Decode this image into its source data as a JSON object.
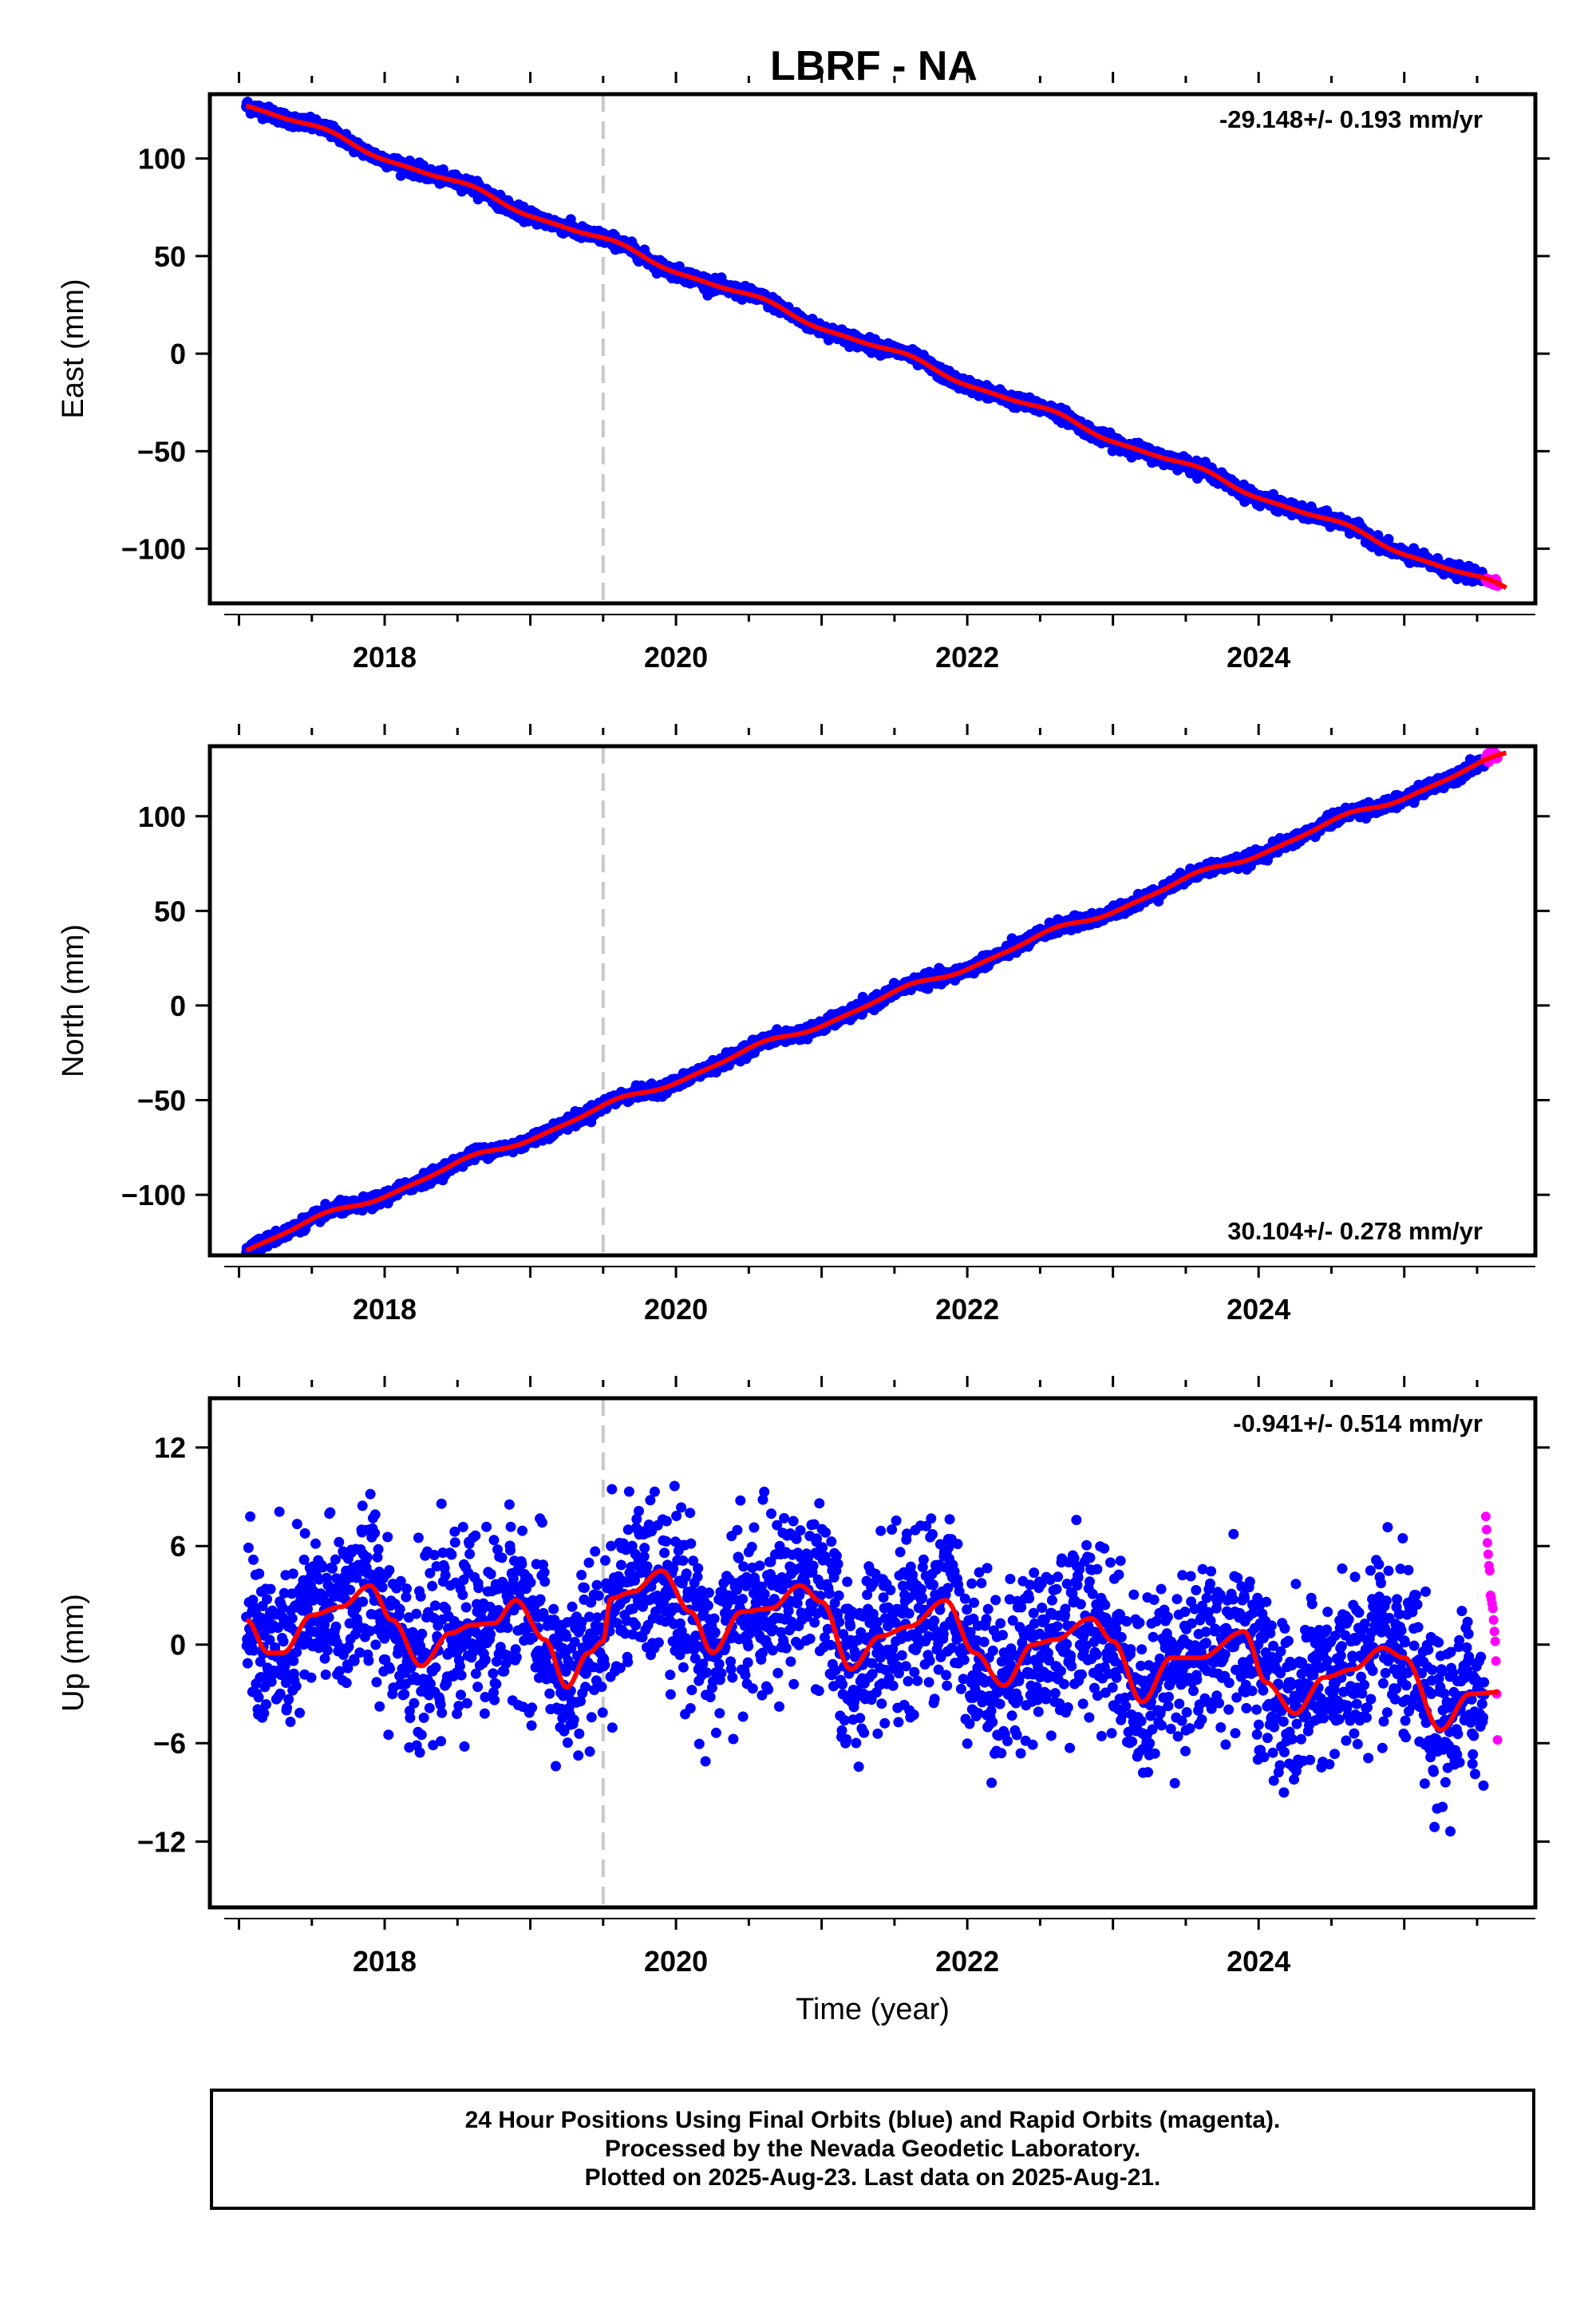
{
  "title": "LBRF - NA",
  "colors": {
    "final_points": "#0000ff",
    "rapid_points": "#ff00ff",
    "model_line": "#ff0000",
    "event_line": "#c8c8c8",
    "frame": "#000000"
  },
  "chart_data": [
    {
      "type": "scatter",
      "name": "east",
      "ylabel": "East (mm)",
      "xlabel": "",
      "xlim": [
        2016.8,
        2025.9
      ],
      "ylim": [
        -128,
        133
      ],
      "x_ticks": [
        2018,
        2020,
        2022,
        2024
      ],
      "x_tick_labels": [
        "2018",
        "2020",
        "2022",
        "2024"
      ],
      "y_ticks": [
        -100,
        -50,
        0,
        50,
        100
      ],
      "y_tick_labels": [
        "−100",
        "−50",
        "0",
        "50",
        "100"
      ],
      "rate_label": "-29.148+/- 0.193 mm/yr",
      "rate_label_position": "top-right",
      "event_line_x": 2019.5,
      "trend": {
        "x0": 2017.05,
        "y0": 128.5,
        "x1": 2025.7,
        "y1": -121.5
      },
      "series": [
        {
          "name": "Final Orbits",
          "color": "blue",
          "x_range": [
            2017.05,
            2025.55
          ],
          "noise_mm": 1.6
        },
        {
          "name": "Rapid Orbits",
          "color": "magenta",
          "x_range": [
            2025.56,
            2025.64
          ],
          "noise_mm": 1.2
        }
      ]
    },
    {
      "type": "scatter",
      "name": "north",
      "ylabel": "North (mm)",
      "xlabel": "",
      "xlim": [
        2016.8,
        2025.9
      ],
      "ylim": [
        -132,
        137
      ],
      "x_ticks": [
        2018,
        2020,
        2022,
        2024
      ],
      "x_tick_labels": [
        "2018",
        "2020",
        "2022",
        "2024"
      ],
      "y_ticks": [
        -100,
        -50,
        0,
        50,
        100
      ],
      "y_tick_labels": [
        "−100",
        "−50",
        "0",
        "50",
        "100"
      ],
      "rate_label": "30.104+/- 0.278 mm/yr",
      "rate_label_position": "bottom-right",
      "event_line_x": 2019.5,
      "trend": {
        "x0": 2017.05,
        "y0": -128,
        "x1": 2025.7,
        "y1": 132
      },
      "series": [
        {
          "name": "Final Orbits",
          "color": "blue",
          "x_range": [
            2017.05,
            2025.55
          ],
          "noise_mm": 1.6
        },
        {
          "name": "Rapid Orbits",
          "color": "magenta",
          "x_range": [
            2025.56,
            2025.64
          ],
          "noise_mm": 1.2
        }
      ]
    },
    {
      "type": "scatter",
      "name": "up",
      "ylabel": "Up (mm)",
      "xlabel": "Time (year)",
      "xlim": [
        2016.8,
        2025.9
      ],
      "ylim": [
        -16,
        15
      ],
      "x_ticks": [
        2018,
        2020,
        2022,
        2024
      ],
      "x_tick_labels": [
        "2018",
        "2020",
        "2022",
        "2024"
      ],
      "y_ticks": [
        -12,
        -6,
        0,
        6,
        12
      ],
      "y_tick_labels": [
        "−12",
        "−6",
        "0",
        "6",
        "12"
      ],
      "rate_label": "-0.941+/- 0.514 mm/yr",
      "rate_label_position": "top-right",
      "event_line_x": 2019.5,
      "model_curve": {
        "x": [
          2017.05,
          2017.2,
          2017.3,
          2017.5,
          2017.7,
          2017.9,
          2018.05,
          2018.25,
          2018.45,
          2018.6,
          2018.75,
          2018.9,
          2019.1,
          2019.25,
          2019.4,
          2019.5,
          2019.55,
          2019.7,
          2019.9,
          2020.1,
          2020.25,
          2020.45,
          2020.65,
          2020.85,
          2021.0,
          2021.2,
          2021.4,
          2021.6,
          2021.85,
          2022.05,
          2022.25,
          2022.45,
          2022.6,
          2022.85,
          2023.0,
          2023.2,
          2023.4,
          2023.6,
          2023.9,
          2024.05,
          2024.25,
          2024.45,
          2024.65,
          2024.85,
          2025.0,
          2025.25,
          2025.45,
          2025.65
        ],
        "y": [
          1.5,
          -0.5,
          -0.5,
          1.8,
          2.3,
          3.6,
          1.5,
          -1.3,
          0.7,
          1.2,
          1.3,
          2.7,
          0.3,
          -2.6,
          -0.5,
          0.2,
          2.8,
          3.2,
          4.5,
          2.0,
          -0.5,
          2.0,
          2.2,
          3.6,
          2.6,
          -1.5,
          0.5,
          1.1,
          2.7,
          -0.5,
          -2.5,
          0.0,
          0.3,
          1.6,
          0.2,
          -3.5,
          -0.8,
          -0.8,
          0.8,
          -2.3,
          -4.2,
          -2.0,
          -1.5,
          -0.2,
          -0.8,
          -5.2,
          -3.0,
          -2.9
        ]
      },
      "series": [
        {
          "name": "Final Orbits",
          "color": "blue",
          "x_range": [
            2017.05,
            2025.55
          ],
          "noise_mm": 2.6
        },
        {
          "name": "Rapid Orbits",
          "color": "magenta",
          "x_range": [
            2025.56,
            2025.64
          ],
          "y_values": [
            7.8,
            7.0,
            6.2,
            5.5,
            4.8,
            4.5,
            3.0,
            2.8,
            2.5,
            2.2,
            1.5,
            0.8,
            0.2,
            -1.0,
            -3.0,
            -5.8
          ]
        }
      ]
    }
  ],
  "footer": {
    "line1": "24 Hour Positions Using Final Orbits (blue) and Rapid Orbits (magenta).",
    "line2": "Processed by the Nevada Geodetic Laboratory.",
    "line3": "Plotted on 2025-Aug-23. Last data on 2025-Aug-21."
  }
}
